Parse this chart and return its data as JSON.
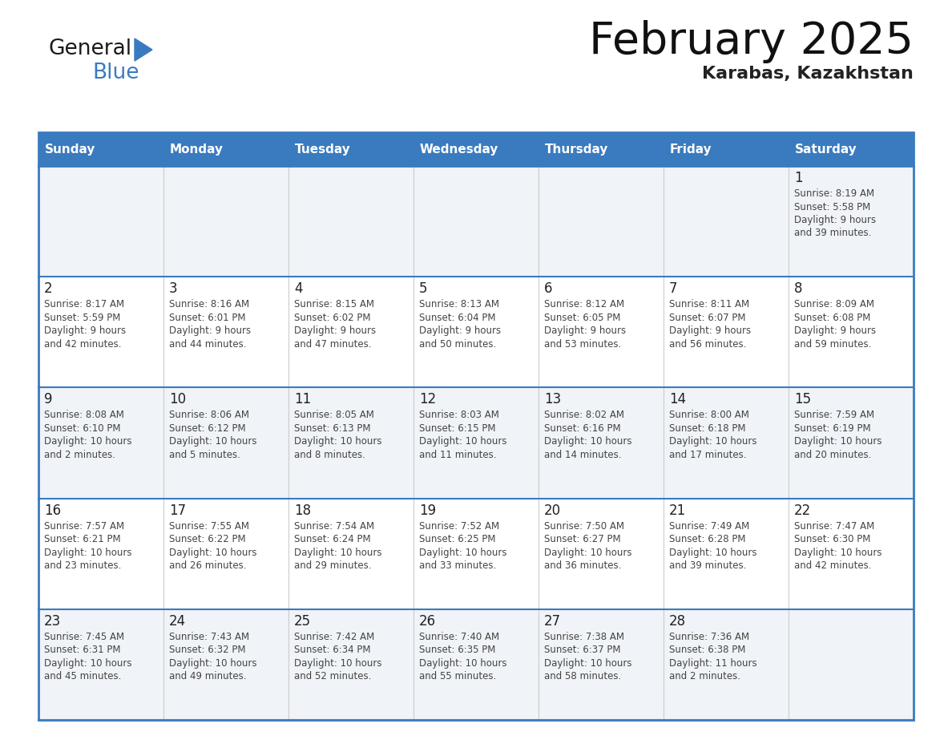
{
  "title": "February 2025",
  "subtitle": "Karabas, Kazakhstan",
  "header_color": "#3a7bbf",
  "header_text_color": "#ffffff",
  "day_names": [
    "Sunday",
    "Monday",
    "Tuesday",
    "Wednesday",
    "Thursday",
    "Friday",
    "Saturday"
  ],
  "background_color": "#ffffff",
  "cell_bg_even": "#f0f3f7",
  "cell_bg_odd": "#ffffff",
  "border_color": "#3a7bbf",
  "sep_color": "#cccccc",
  "text_color": "#333333",
  "date_number_color": "#222222",
  "info_text_color": "#444444",
  "days": [
    {
      "date": 1,
      "col": 6,
      "row": 0,
      "sunrise": "8:19 AM",
      "sunset": "5:58 PM",
      "daylight": "9 hours and 39 minutes"
    },
    {
      "date": 2,
      "col": 0,
      "row": 1,
      "sunrise": "8:17 AM",
      "sunset": "5:59 PM",
      "daylight": "9 hours and 42 minutes"
    },
    {
      "date": 3,
      "col": 1,
      "row": 1,
      "sunrise": "8:16 AM",
      "sunset": "6:01 PM",
      "daylight": "9 hours and 44 minutes"
    },
    {
      "date": 4,
      "col": 2,
      "row": 1,
      "sunrise": "8:15 AM",
      "sunset": "6:02 PM",
      "daylight": "9 hours and 47 minutes"
    },
    {
      "date": 5,
      "col": 3,
      "row": 1,
      "sunrise": "8:13 AM",
      "sunset": "6:04 PM",
      "daylight": "9 hours and 50 minutes"
    },
    {
      "date": 6,
      "col": 4,
      "row": 1,
      "sunrise": "8:12 AM",
      "sunset": "6:05 PM",
      "daylight": "9 hours and 53 minutes"
    },
    {
      "date": 7,
      "col": 5,
      "row": 1,
      "sunrise": "8:11 AM",
      "sunset": "6:07 PM",
      "daylight": "9 hours and 56 minutes"
    },
    {
      "date": 8,
      "col": 6,
      "row": 1,
      "sunrise": "8:09 AM",
      "sunset": "6:08 PM",
      "daylight": "9 hours and 59 minutes"
    },
    {
      "date": 9,
      "col": 0,
      "row": 2,
      "sunrise": "8:08 AM",
      "sunset": "6:10 PM",
      "daylight": "10 hours and 2 minutes"
    },
    {
      "date": 10,
      "col": 1,
      "row": 2,
      "sunrise": "8:06 AM",
      "sunset": "6:12 PM",
      "daylight": "10 hours and 5 minutes"
    },
    {
      "date": 11,
      "col": 2,
      "row": 2,
      "sunrise": "8:05 AM",
      "sunset": "6:13 PM",
      "daylight": "10 hours and 8 minutes"
    },
    {
      "date": 12,
      "col": 3,
      "row": 2,
      "sunrise": "8:03 AM",
      "sunset": "6:15 PM",
      "daylight": "10 hours and 11 minutes"
    },
    {
      "date": 13,
      "col": 4,
      "row": 2,
      "sunrise": "8:02 AM",
      "sunset": "6:16 PM",
      "daylight": "10 hours and 14 minutes"
    },
    {
      "date": 14,
      "col": 5,
      "row": 2,
      "sunrise": "8:00 AM",
      "sunset": "6:18 PM",
      "daylight": "10 hours and 17 minutes"
    },
    {
      "date": 15,
      "col": 6,
      "row": 2,
      "sunrise": "7:59 AM",
      "sunset": "6:19 PM",
      "daylight": "10 hours and 20 minutes"
    },
    {
      "date": 16,
      "col": 0,
      "row": 3,
      "sunrise": "7:57 AM",
      "sunset": "6:21 PM",
      "daylight": "10 hours and 23 minutes"
    },
    {
      "date": 17,
      "col": 1,
      "row": 3,
      "sunrise": "7:55 AM",
      "sunset": "6:22 PM",
      "daylight": "10 hours and 26 minutes"
    },
    {
      "date": 18,
      "col": 2,
      "row": 3,
      "sunrise": "7:54 AM",
      "sunset": "6:24 PM",
      "daylight": "10 hours and 29 minutes"
    },
    {
      "date": 19,
      "col": 3,
      "row": 3,
      "sunrise": "7:52 AM",
      "sunset": "6:25 PM",
      "daylight": "10 hours and 33 minutes"
    },
    {
      "date": 20,
      "col": 4,
      "row": 3,
      "sunrise": "7:50 AM",
      "sunset": "6:27 PM",
      "daylight": "10 hours and 36 minutes"
    },
    {
      "date": 21,
      "col": 5,
      "row": 3,
      "sunrise": "7:49 AM",
      "sunset": "6:28 PM",
      "daylight": "10 hours and 39 minutes"
    },
    {
      "date": 22,
      "col": 6,
      "row": 3,
      "sunrise": "7:47 AM",
      "sunset": "6:30 PM",
      "daylight": "10 hours and 42 minutes"
    },
    {
      "date": 23,
      "col": 0,
      "row": 4,
      "sunrise": "7:45 AM",
      "sunset": "6:31 PM",
      "daylight": "10 hours and 45 minutes"
    },
    {
      "date": 24,
      "col": 1,
      "row": 4,
      "sunrise": "7:43 AM",
      "sunset": "6:32 PM",
      "daylight": "10 hours and 49 minutes"
    },
    {
      "date": 25,
      "col": 2,
      "row": 4,
      "sunrise": "7:42 AM",
      "sunset": "6:34 PM",
      "daylight": "10 hours and 52 minutes"
    },
    {
      "date": 26,
      "col": 3,
      "row": 4,
      "sunrise": "7:40 AM",
      "sunset": "6:35 PM",
      "daylight": "10 hours and 55 minutes"
    },
    {
      "date": 27,
      "col": 4,
      "row": 4,
      "sunrise": "7:38 AM",
      "sunset": "6:37 PM",
      "daylight": "10 hours and 58 minutes"
    },
    {
      "date": 28,
      "col": 5,
      "row": 4,
      "sunrise": "7:36 AM",
      "sunset": "6:38 PM",
      "daylight": "11 hours and 2 minutes"
    }
  ],
  "num_rows": 5,
  "num_cols": 7,
  "logo_text_general": "General",
  "logo_text_blue": "Blue",
  "logo_color_general": "#1a1a1a",
  "logo_color_blue": "#3a7bbf",
  "logo_triangle_color": "#3a7bbf",
  "title_fontsize": 40,
  "subtitle_fontsize": 16,
  "header_fontsize": 11,
  "date_fontsize": 12,
  "info_fontsize": 8.5
}
